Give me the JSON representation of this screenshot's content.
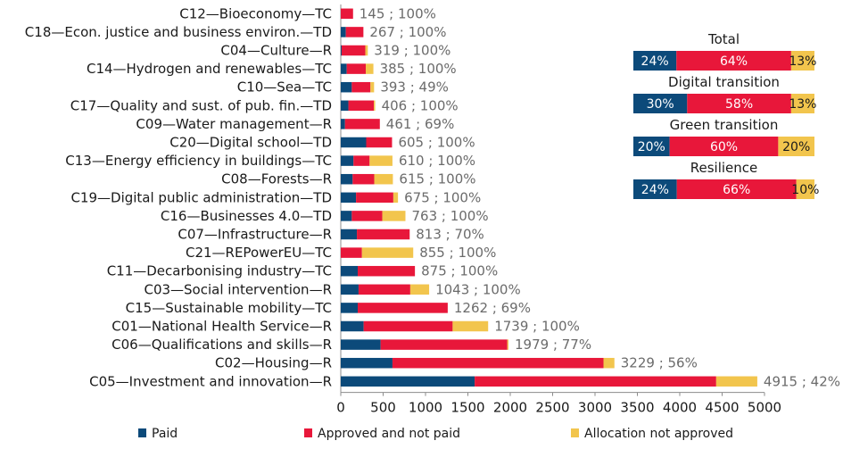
{
  "chart_data": {
    "type": "bar",
    "orientation": "horizontal",
    "stacked": true,
    "categories": [
      "C12—Bioeconomy—TC",
      "C18—Econ. justice and business environ.—TD",
      "C04—Culture—R",
      "C14—Hydrogen and renewables—TC",
      "C10—Sea—TC",
      "C17—Quality and sust. of pub. fin.—TD",
      "C09—Water management—R",
      "C20—Digital school—TD",
      "C13—Energy efficiency in buildings—TC",
      "C08—Forests—R",
      "C19—Digital public administration—TD",
      "C16—Businesses 4.0—TD",
      "C07—Infrastructure—R",
      "C21—REPowerEU—TC",
      "C11—Decarbonising industry—TC",
      "C03—Social intervention—R",
      "C15—Sustainable mobility—TC",
      "C01—National Health Service—R",
      "C06—Qualifications and skills—R",
      "C02—Housing—R",
      "C05—Investment and innovation—R"
    ],
    "series": [
      {
        "name": "Paid",
        "color": "#0c4a7a",
        "values": [
          0,
          60,
          10,
          70,
          130,
          90,
          50,
          300,
          150,
          140,
          180,
          130,
          190,
          0,
          200,
          210,
          200,
          270,
          470,
          610,
          1580
        ]
      },
      {
        "name": "Approved and not paid",
        "color": "#e8173a",
        "values": [
          145,
          207,
          280,
          225,
          220,
          300,
          411,
          305,
          190,
          255,
          440,
          360,
          623,
          250,
          675,
          610,
          1062,
          1050,
          1495,
          2490,
          2850
        ]
      },
      {
        "name": "Allocation not approved",
        "color": "#f2c54d",
        "values": [
          0,
          0,
          29,
          90,
          43,
          16,
          0,
          0,
          270,
          220,
          55,
          273,
          0,
          605,
          0,
          223,
          0,
          419,
          14,
          129,
          485
        ]
      }
    ],
    "data_labels": [
      "145 ; 100%",
      "267 ; 100%",
      "319 ; 100%",
      "385 ; 100%",
      "393 ; 49%",
      "406 ; 100%",
      "461 ; 69%",
      "605 ; 100%",
      "610 ; 100%",
      "615 ; 100%",
      "675 ; 100%",
      "763 ; 100%",
      "813 ; 70%",
      "855 ; 100%",
      "875 ; 100%",
      "1043 ; 100%",
      "1262 ; 69%",
      "1739 ; 100%",
      "1979 ; 77%",
      "3229 ; 56%",
      "4915 ; 42%"
    ],
    "xlim": [
      0,
      5000
    ],
    "xticks": [
      0,
      500,
      1000,
      1500,
      2000,
      2500,
      3000,
      3500,
      4000,
      4500,
      5000
    ],
    "xlabel": "",
    "ylabel": "",
    "title": "",
    "legend_position": "bottom",
    "summary_panels": [
      {
        "title": "Total",
        "values": [
          24,
          64,
          13
        ],
        "labels": [
          "24%",
          "64%",
          "13%"
        ]
      },
      {
        "title": "Digital transition",
        "values": [
          30,
          58,
          13
        ],
        "labels": [
          "30%",
          "58%",
          "13%"
        ]
      },
      {
        "title": "Green transition",
        "values": [
          20,
          60,
          20
        ],
        "labels": [
          "20%",
          "60%",
          "20%"
        ]
      },
      {
        "title": "Resilience",
        "values": [
          24,
          66,
          10
        ],
        "labels": [
          "24%",
          "66%",
          "10%"
        ]
      }
    ]
  }
}
